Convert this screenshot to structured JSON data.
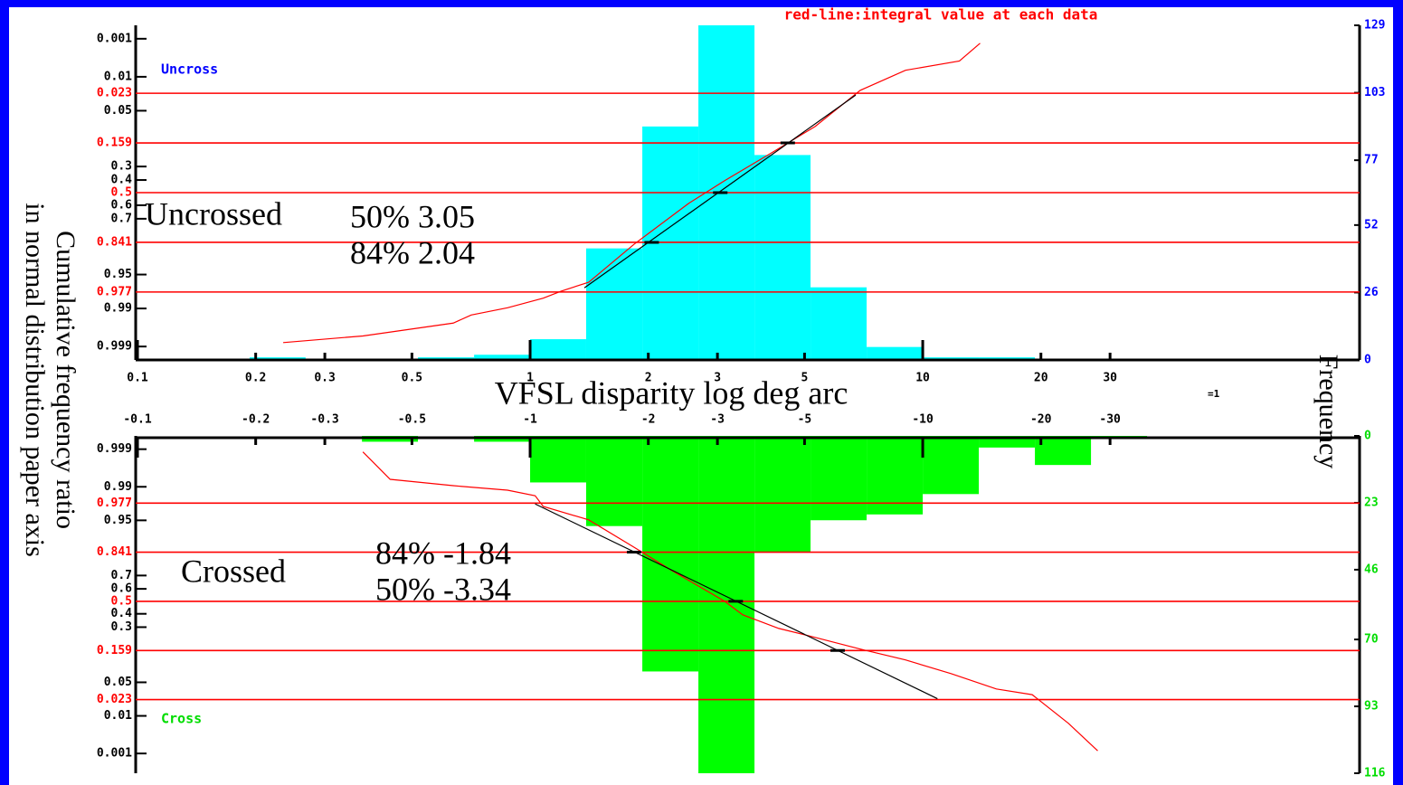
{
  "title": "red-line:integral value at each data",
  "x_label": "VFSL disparity  log deg arc",
  "y_label": [
    "Cumulative frequency ratio",
    "in normal distribution paper axis"
  ],
  "y2_label": "Frequency",
  "scale_note": "=1",
  "chart_data": [
    {
      "type": "histogram",
      "label": "Uncross",
      "label_color": "#0000ff",
      "group_label": "Uncrossed",
      "annotations": [
        "50% 3.05",
        "84% 2.04"
      ],
      "color": "#00ffff",
      "bins": [
        0.193,
        0.268,
        0.373,
        0.518,
        0.72,
        1,
        1.389,
        1.931,
        2.683,
        3.728,
        5.179,
        7.197,
        10,
        13.895,
        19.307
      ],
      "values": [
        1,
        0,
        0,
        1,
        2,
        8,
        43,
        90,
        129,
        79,
        28,
        5,
        1,
        1
      ],
      "xscale": "log",
      "xlim": [
        0.1,
        131
      ],
      "xticks": [
        0.1,
        0.2,
        0.3,
        0.5,
        1,
        2,
        3,
        5,
        10,
        20,
        30
      ],
      "y2lim": [
        0,
        129
      ],
      "y2ticks": [
        0,
        26,
        52,
        77,
        103,
        129
      ],
      "y2_color": "#0000ff",
      "y2_direction": "up",
      "prob_lim": [
        0.00039,
        0.99961
      ],
      "prob_ticks": [
        0.001,
        0.01,
        0.05,
        0.3,
        0.4,
        0.6,
        0.7,
        0.95,
        0.99,
        0.999
      ],
      "reference_levels": [
        0.023,
        0.159,
        0.5,
        0.841,
        0.977
      ],
      "reference_color": "#ff0000",
      "cumulative": {
        "color": "#ff0000",
        "x": [
          0.235,
          0.375,
          0.637,
          0.708,
          0.876,
          1.08,
          1.2,
          1.41,
          1.84,
          2.53,
          3.13,
          4.08,
          5.32,
          6.93,
          9.04,
          12.4,
          14.0
        ],
        "p": [
          0.9987,
          0.998,
          0.9956,
          0.993,
          0.9896,
          0.983,
          0.976,
          0.964,
          0.85,
          0.587,
          0.405,
          0.218,
          0.092,
          0.02,
          0.007,
          0.0041,
          0.00135
        ]
      },
      "fit": {
        "color": "#000000",
        "x": [
          1.375,
          6.75
        ],
        "p": [
          0.972,
          0.025
        ]
      },
      "fit_points": {
        "x": [
          4.53,
          3.05,
          2.04
        ],
        "p": [
          0.159,
          0.5,
          0.841
        ]
      }
    },
    {
      "type": "histogram",
      "label": "Cross",
      "label_color": "#00dd00",
      "group_label": "Crossed",
      "annotations": [
        "84% -1.84",
        "50% -3.34"
      ],
      "color": "#00ff00",
      "bins": [
        -0.373,
        -0.518,
        -0.72,
        -1,
        -1.389,
        -1.931,
        -2.683,
        -3.728,
        -5.179,
        -7.197,
        -10,
        -13.895,
        -19.307,
        -26.827,
        -37.276
      ],
      "values": [
        2,
        0,
        2,
        16,
        31,
        81,
        116,
        40,
        29,
        27,
        20,
        4,
        10,
        1
      ],
      "xscale": "log",
      "xlim": [
        -0.1,
        -131
      ],
      "xticks": [
        -0.1,
        -0.2,
        -0.3,
        -0.5,
        -1,
        -2,
        -3,
        -5,
        -10,
        -20,
        -30
      ],
      "y2lim": [
        0,
        116
      ],
      "y2ticks": [
        0,
        23,
        46,
        70,
        93,
        116
      ],
      "y2_color": "#00dd00",
      "y2_direction": "down",
      "prob_lim": [
        0.99961,
        0.00024
      ],
      "prob_ticks": [
        0.999,
        0.99,
        0.95,
        0.7,
        0.6,
        0.4,
        0.3,
        0.05,
        0.01,
        0.001
      ],
      "reference_levels": [
        0.977,
        0.841,
        0.5,
        0.159,
        0.023
      ],
      "reference_color": "#ff0000",
      "cumulative": {
        "color": "#ff0000",
        "x": [
          -0.375,
          -0.44,
          -0.637,
          -0.876,
          -1.03,
          -1.08,
          -1.41,
          -1.84,
          -2.28,
          -3.13,
          -3.48,
          -4.3,
          -5.32,
          -6.93,
          -9.04,
          -11.8,
          -15.4,
          -19.0,
          -23.5,
          -27.9
        ],
        "p": [
          0.9988,
          0.9934,
          0.9906,
          0.988,
          0.984,
          0.973,
          0.951,
          0.864,
          0.739,
          0.5,
          0.392,
          0.291,
          0.232,
          0.166,
          0.117,
          0.071,
          0.0375,
          0.029,
          0.0066,
          0.0012
        ]
      },
      "fit": {
        "color": "#000000",
        "x": [
          -1.03,
          -10.9
        ],
        "p": [
          0.976,
          0.024
        ]
      },
      "fit_points": {
        "x": [
          -1.84,
          -3.34,
          -6.07
        ],
        "p": [
          0.841,
          0.5,
          0.159
        ]
      }
    }
  ]
}
